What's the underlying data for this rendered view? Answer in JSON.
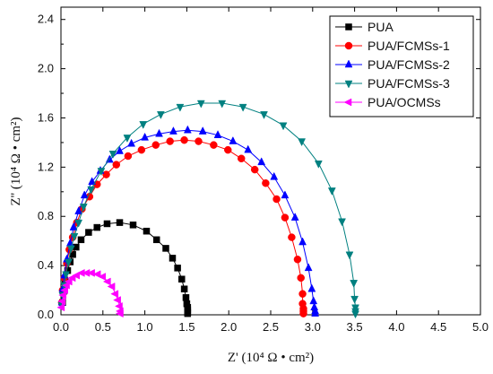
{
  "chart_data": {
    "type": "scatter",
    "xlabel": "Z' (10⁴ Ω • cm²)",
    "ylabel": "Z'' (10⁴ Ω • cm²)",
    "xlim": [
      0,
      5.0
    ],
    "ylim": [
      0,
      2.5
    ],
    "x_ticks": [
      "0.0",
      "0.5",
      "1.0",
      "1.5",
      "2.0",
      "2.5",
      "3.0",
      "3.5",
      "4.0",
      "4.5",
      "5.0"
    ],
    "y_ticks": [
      "0.0",
      "0.4",
      "0.8",
      "1.2",
      "1.6",
      "2.0",
      "2.4"
    ],
    "grid": false,
    "legend_position": "top-right",
    "series": [
      {
        "name": "PUA",
        "color": "#000000",
        "marker": "square",
        "x": [
          0.02,
          0.03,
          0.05,
          0.08,
          0.11,
          0.14,
          0.18,
          0.24,
          0.33,
          0.43,
          0.55,
          0.7,
          0.86,
          1.02,
          1.14,
          1.25,
          1.33,
          1.39,
          1.44,
          1.47,
          1.49,
          1.5,
          1.51,
          1.51,
          1.51,
          1.51
        ],
        "y": [
          0.1,
          0.19,
          0.27,
          0.36,
          0.43,
          0.49,
          0.55,
          0.61,
          0.67,
          0.71,
          0.74,
          0.75,
          0.73,
          0.68,
          0.61,
          0.54,
          0.46,
          0.38,
          0.29,
          0.21,
          0.14,
          0.09,
          0.06,
          0.04,
          0.02,
          0.01
        ]
      },
      {
        "name": "PUA/FCMSs-1",
        "color": "#ff0000",
        "marker": "circle",
        "x": [
          0.01,
          0.02,
          0.04,
          0.07,
          0.1,
          0.14,
          0.19,
          0.25,
          0.34,
          0.43,
          0.54,
          0.66,
          0.8,
          0.96,
          1.13,
          1.3,
          1.47,
          1.64,
          1.82,
          1.99,
          2.15,
          2.31,
          2.44,
          2.57,
          2.67,
          2.75,
          2.82,
          2.86,
          2.88,
          2.88,
          2.89,
          2.89,
          2.89
        ],
        "y": [
          0.1,
          0.2,
          0.3,
          0.42,
          0.53,
          0.63,
          0.75,
          0.86,
          0.96,
          1.06,
          1.14,
          1.22,
          1.29,
          1.34,
          1.38,
          1.41,
          1.42,
          1.41,
          1.38,
          1.34,
          1.27,
          1.18,
          1.07,
          0.94,
          0.79,
          0.63,
          0.45,
          0.3,
          0.17,
          0.09,
          0.05,
          0.03,
          0.01
        ]
      },
      {
        "name": "PUA/FCMSs-2",
        "color": "#0000ff",
        "marker": "triangle-up",
        "x": [
          0.01,
          0.02,
          0.04,
          0.07,
          0.11,
          0.15,
          0.21,
          0.28,
          0.37,
          0.47,
          0.58,
          0.7,
          0.84,
          1.0,
          1.17,
          1.34,
          1.51,
          1.69,
          1.87,
          2.05,
          2.23,
          2.39,
          2.54,
          2.67,
          2.79,
          2.88,
          2.95,
          2.99,
          3.01,
          3.02,
          3.03,
          3.03
        ],
        "y": [
          0.1,
          0.21,
          0.32,
          0.45,
          0.58,
          0.71,
          0.84,
          0.97,
          1.08,
          1.17,
          1.26,
          1.33,
          1.39,
          1.44,
          1.47,
          1.49,
          1.5,
          1.49,
          1.46,
          1.41,
          1.34,
          1.24,
          1.12,
          0.97,
          0.79,
          0.59,
          0.38,
          0.21,
          0.11,
          0.06,
          0.03,
          0.01
        ]
      },
      {
        "name": "PUA/FCMSs-3",
        "color": "#008080",
        "marker": "triangle-down",
        "x": [
          0.01,
          0.02,
          0.04,
          0.06,
          0.09,
          0.12,
          0.16,
          0.21,
          0.27,
          0.36,
          0.48,
          0.62,
          0.79,
          0.98,
          1.19,
          1.42,
          1.67,
          1.92,
          2.17,
          2.42,
          2.65,
          2.87,
          3.07,
          3.23,
          3.35,
          3.44,
          3.49,
          3.5,
          3.51,
          3.51,
          3.51
        ],
        "y": [
          0.08,
          0.16,
          0.24,
          0.33,
          0.43,
          0.54,
          0.64,
          0.75,
          0.88,
          1.02,
          1.17,
          1.31,
          1.44,
          1.55,
          1.63,
          1.69,
          1.72,
          1.72,
          1.69,
          1.63,
          1.54,
          1.41,
          1.23,
          1.01,
          0.76,
          0.49,
          0.26,
          0.13,
          0.06,
          0.03,
          0.01
        ]
      },
      {
        "name": "PUA/OCMSs",
        "color": "#ff00ff",
        "marker": "triangle-left",
        "x": [
          0.01,
          0.02,
          0.03,
          0.05,
          0.07,
          0.1,
          0.14,
          0.19,
          0.25,
          0.31,
          0.37,
          0.44,
          0.5,
          0.56,
          0.61,
          0.65,
          0.68,
          0.7,
          0.71,
          0.71
        ],
        "y": [
          0.06,
          0.11,
          0.16,
          0.2,
          0.24,
          0.27,
          0.3,
          0.32,
          0.34,
          0.34,
          0.34,
          0.33,
          0.31,
          0.27,
          0.23,
          0.17,
          0.12,
          0.07,
          0.03,
          0.01
        ]
      }
    ]
  }
}
